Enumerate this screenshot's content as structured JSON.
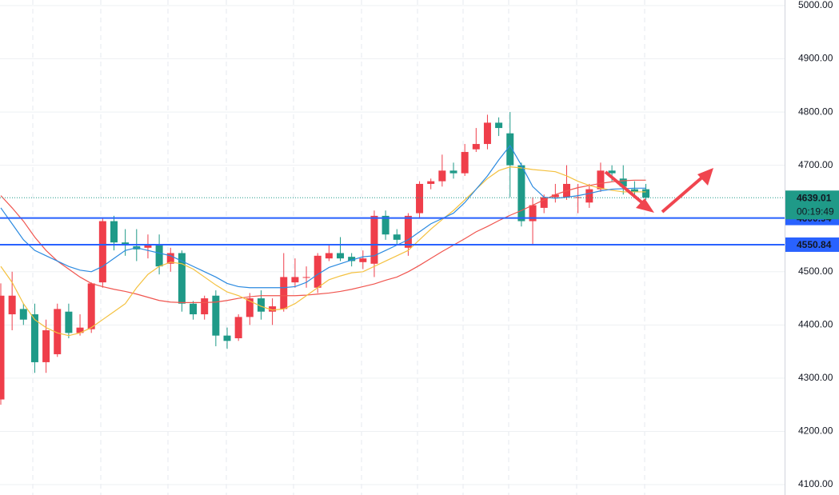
{
  "chart_data": {
    "type": "candlestick",
    "open": [
      4260,
      4420,
      4430,
      4420,
      4330,
      4345,
      4425,
      4385,
      4392,
      4480,
      4595,
      4555,
      4548,
      4545,
      4550,
      4515,
      4535,
      4440,
      4420,
      4455,
      4380,
      4375,
      4415,
      4450,
      4425,
      4430,
      4480,
      4490,
      4470,
      4525,
      4535,
      4528,
      4518,
      4515,
      4605,
      4570,
      4545,
      4610,
      4665,
      4670,
      4690,
      4685,
      4730,
      4740,
      4780,
      4760,
      4700,
      4595,
      4620,
      4640,
      4640,
      4640,
      4630,
      4655,
      4690,
      4675,
      4655,
      4655
    ],
    "high": [
      4478,
      4500,
      4440,
      4440,
      4410,
      4440,
      4440,
      4420,
      4480,
      4600,
      4605,
      4580,
      4580,
      4570,
      4570,
      4545,
      4540,
      4445,
      4455,
      4465,
      4395,
      4420,
      4460,
      4465,
      4450,
      4535,
      4525,
      4510,
      4535,
      4550,
      4565,
      4535,
      4540,
      4615,
      4615,
      4580,
      4610,
      4670,
      4675,
      4720,
      4705,
      4740,
      4770,
      4795,
      4790,
      4800,
      4705,
      4640,
      4645,
      4665,
      4700,
      4665,
      4665,
      4705,
      4700,
      4700,
      4670,
      4665
    ],
    "low": [
      4250,
      4390,
      4400,
      4310,
      4310,
      4340,
      4375,
      4380,
      4385,
      4470,
      4540,
      4530,
      4520,
      4525,
      4495,
      4500,
      4425,
      4410,
      4410,
      4360,
      4355,
      4370,
      4400,
      4410,
      4400,
      4425,
      4470,
      4470,
      4460,
      4520,
      4520,
      4510,
      4505,
      4490,
      4560,
      4550,
      4530,
      4600,
      4655,
      4660,
      4675,
      4680,
      4725,
      4730,
      4755,
      4640,
      4585,
      4550,
      4610,
      4630,
      4635,
      4610,
      4620,
      4650,
      4670,
      4645,
      4640,
      4635
    ],
    "close": [
      4455,
      4455,
      4410,
      4330,
      4390,
      4430,
      4385,
      4395,
      4478,
      4595,
      4555,
      4550,
      4542,
      4550,
      4510,
      4535,
      4440,
      4420,
      4450,
      4380,
      4370,
      4415,
      4450,
      4425,
      4435,
      4490,
      4490,
      4490,
      4530,
      4535,
      4525,
      4520,
      4525,
      4605,
      4570,
      4560,
      4605,
      4665,
      4670,
      4690,
      4685,
      4725,
      4740,
      4780,
      4770,
      4700,
      4595,
      4625,
      4640,
      4645,
      4665,
      4640,
      4655,
      4690,
      4685,
      4660,
      4650,
      4639.01
    ],
    "up_color": "#ef3e4a",
    "down_color": "#1f9a88",
    "lines": [
      {
        "color": "#f0554f",
        "values": [
          4643,
          4620,
          4595,
          4565,
          4540,
          4520,
          4505,
          4490,
          4478,
          4472,
          4467,
          4463,
          4458,
          4452,
          4446,
          4443,
          4442,
          4442,
          4442,
          4443,
          4446,
          4450,
          4453,
          4455,
          4455,
          4455,
          4455,
          4456,
          4458,
          4460,
          4463,
          4467,
          4472,
          4477,
          4484,
          4490,
          4500,
          4512,
          4525,
          4538,
          4550,
          4562,
          4575,
          4585,
          4596,
          4606,
          4615,
          4625,
          4635,
          4645,
          4652,
          4658,
          4662,
          4666,
          4669,
          4671,
          4672,
          4672
        ]
      },
      {
        "color": "#f4c13f",
        "values": [
          4510,
          4480,
          4440,
          4410,
          4395,
          4385,
          4380,
          4385,
          4395,
          4410,
          4425,
          4440,
          4470,
          4495,
          4510,
          4518,
          4515,
          4505,
          4490,
          4475,
          4462,
          4455,
          4445,
          4435,
          4428,
          4430,
          4440,
          4455,
          4470,
          4485,
          4492,
          4498,
          4500,
          4510,
          4520,
          4530,
          4540,
          4560,
          4580,
          4598,
          4615,
          4635,
          4655,
          4675,
          4690,
          4697,
          4695,
          4692,
          4690,
          4688,
          4680,
          4670,
          4662,
          4657,
          4653,
          4650,
          4650,
          4650
        ]
      },
      {
        "color": "#2b8ae0",
        "values": [
          4620,
          4590,
          4560,
          4540,
          4530,
          4520,
          4510,
          4503,
          4500,
          4510,
          4525,
          4540,
          4545,
          4540,
          4535,
          4530,
          4520,
          4510,
          4500,
          4490,
          4478,
          4472,
          4470,
          4470,
          4470,
          4470,
          4472,
          4480,
          4495,
          4508,
          4515,
          4522,
          4528,
          4530,
          4540,
          4550,
          4560,
          4575,
          4590,
          4600,
          4610,
          4630,
          4655,
          4680,
          4710,
          4737,
          4700,
          4660,
          4640,
          4638,
          4640,
          4643,
          4647,
          4652,
          4655,
          4656,
          4657,
          4657
        ]
      }
    ],
    "ylim": [
      4080.5,
      5000
    ],
    "yticks": [
      {
        "value": 4100,
        "label": "4100.00"
      },
      {
        "value": 4200,
        "label": "4200.00"
      },
      {
        "value": 4300,
        "label": "4300.00"
      },
      {
        "value": 4400,
        "label": "4400.00"
      },
      {
        "value": 4500,
        "label": "4500.00"
      },
      {
        "value": 4600,
        "label": "4600.00"
      },
      {
        "value": 4700,
        "label": "4700.00"
      },
      {
        "value": 4800,
        "label": "4800.00"
      },
      {
        "value": 4900,
        "label": "4900.00"
      },
      {
        "value": 5000,
        "label": "5000.00"
      }
    ],
    "levels": [
      {
        "value": 4600.94,
        "color": "#2962ff"
      },
      {
        "value": 4550.84,
        "color": "#2962ff"
      }
    ],
    "current_price": 4639.01,
    "countdown": "00:19:49",
    "price_color": "#1f9a88",
    "grid": true
  }
}
